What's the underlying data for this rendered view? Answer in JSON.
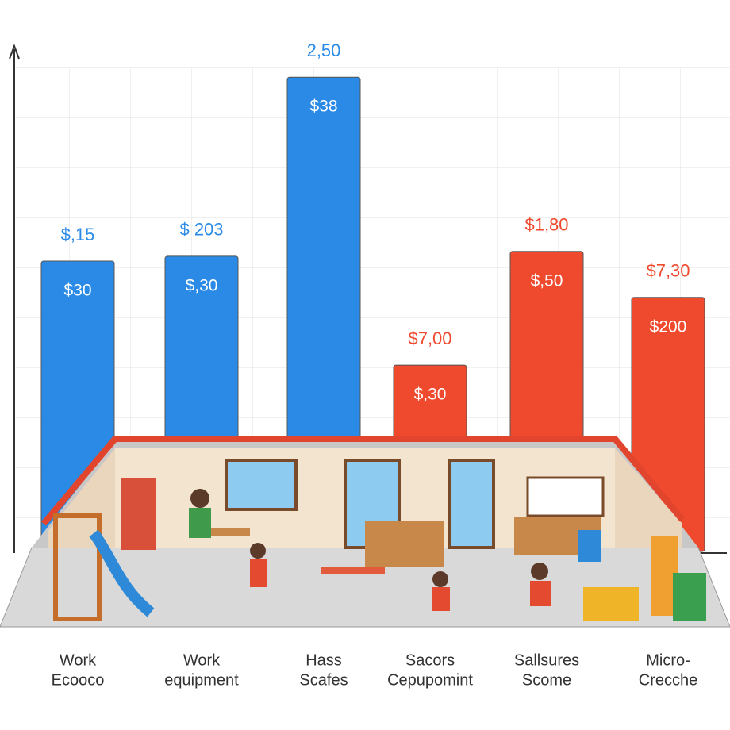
{
  "chart_data": {
    "type": "bar",
    "categories": [
      [
        "Work",
        "Ecooco"
      ],
      [
        "Work",
        "equipment"
      ],
      [
        "Hass",
        "Scafes"
      ],
      [
        "Sacors",
        "Cepupomint"
      ],
      [
        "Sallsures",
        "Scome"
      ],
      [
        "Micro-",
        "Crecche"
      ]
    ],
    "values": [
      6.0,
      6.1,
      9.8,
      3.85,
      6.2,
      5.25
    ],
    "top_labels": [
      "$,15",
      "$ 203",
      "2,50",
      "$7,00",
      "$1,80",
      "$7,30"
    ],
    "bar_labels": [
      "$30",
      "$,30",
      "$38",
      "$,30",
      "$,50",
      "$200"
    ],
    "colors": [
      "#2a8ae6",
      "#2a8ae6",
      "#2a8ae6",
      "#ef4a2e",
      "#ef4a2e",
      "#ef4a2e"
    ],
    "ylim": [
      0,
      10
    ]
  }
}
